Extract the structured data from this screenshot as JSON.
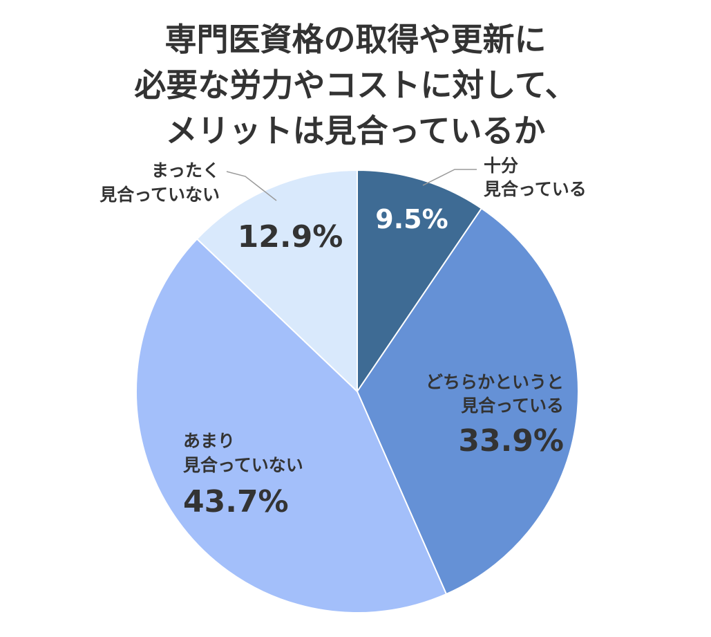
{
  "chart_data": {
    "type": "pie",
    "title_lines": [
      "専門医資格の取得や更新に",
      "必要な労力やコストに対して、",
      "メリットは見合っているか"
    ],
    "slices": [
      {
        "label_lines": [
          "十分",
          "見合っている"
        ],
        "value": 9.5,
        "display": "9.5%",
        "color": "#3e6b94"
      },
      {
        "label_lines": [
          "どちらかというと",
          "見合っている"
        ],
        "value": 33.9,
        "display": "33.9%",
        "color": "#6591d6"
      },
      {
        "label_lines": [
          "あまり",
          "見合っていない"
        ],
        "value": 43.7,
        "display": "43.7%",
        "color": "#a3bffa"
      },
      {
        "label_lines": [
          "まったく",
          "見合っていない"
        ],
        "value": 12.9,
        "display": "12.9%",
        "color": "#d9e9fc"
      }
    ],
    "start_angle": "12 o'clock",
    "direction": "clockwise"
  }
}
